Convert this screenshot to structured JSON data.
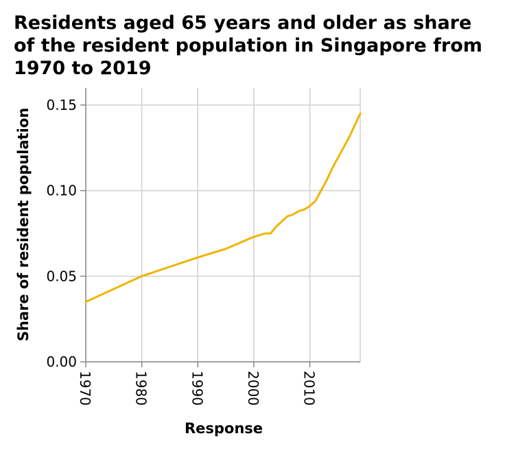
{
  "chart_data": {
    "type": "line",
    "title_lines": [
      "Residents aged 65 years and older as share",
      "of the resident population in Singapore from",
      "1970 to 2019"
    ],
    "xlabel": "Response",
    "ylabel": "Share of resident population",
    "xlim": [
      1970,
      2019
    ],
    "ylim": [
      0,
      0.16
    ],
    "x_ticks": [
      1970,
      1980,
      1990,
      2000,
      2010
    ],
    "x_tick_labels": [
      "1970",
      "1980",
      "1990",
      "2000",
      "2010"
    ],
    "y_ticks": [
      0,
      0.05,
      0.1,
      0.15
    ],
    "y_tick_labels": [
      "0.00",
      "0.05",
      "0.10",
      "0.15"
    ],
    "grid": true,
    "line_color": "#f0b400",
    "series": [
      {
        "x": [
          1970,
          1980,
          1990,
          1995,
          2000,
          2002,
          2003,
          2004,
          2005,
          2006,
          2007,
          2008,
          2009,
          2010,
          2011,
          2012,
          2013,
          2014,
          2015,
          2016,
          2017,
          2018,
          2019
        ],
        "y": [
          0.035,
          0.05,
          0.061,
          0.066,
          0.073,
          0.075,
          0.075,
          0.079,
          0.082,
          0.085,
          0.086,
          0.088,
          0.089,
          0.091,
          0.094,
          0.1,
          0.106,
          0.113,
          0.119,
          0.125,
          0.131,
          0.138,
          0.145
        ]
      }
    ]
  }
}
